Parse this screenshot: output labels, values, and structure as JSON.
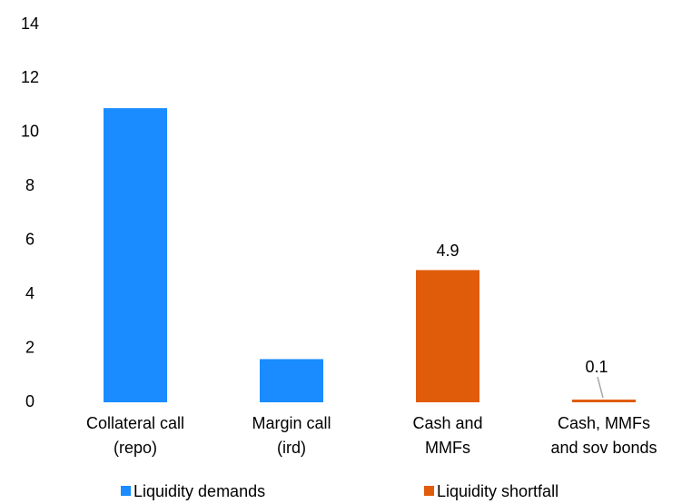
{
  "chart_data": {
    "type": "bar",
    "categories": [
      [
        "Collateral call",
        "(repo)"
      ],
      [
        "Margin call",
        "(ird)"
      ],
      [
        "Cash and",
        "MMFs"
      ],
      [
        "Cash, MMFs",
        "and sov bonds"
      ]
    ],
    "series": [
      {
        "name": "Liquidity demands",
        "color": "#1a8cff",
        "values": [
          10.9,
          1.6,
          null,
          null
        ]
      },
      {
        "name": "Liquidity shortfall",
        "color": "#e05c0a",
        "values": [
          null,
          null,
          4.9,
          0.1
        ]
      }
    ],
    "data_labels_series": [
      1
    ],
    "ylim": [
      0,
      14
    ],
    "yticks": [
      0,
      2,
      4,
      6,
      8,
      10,
      12,
      14
    ],
    "grid": false,
    "legend": "bottom"
  }
}
